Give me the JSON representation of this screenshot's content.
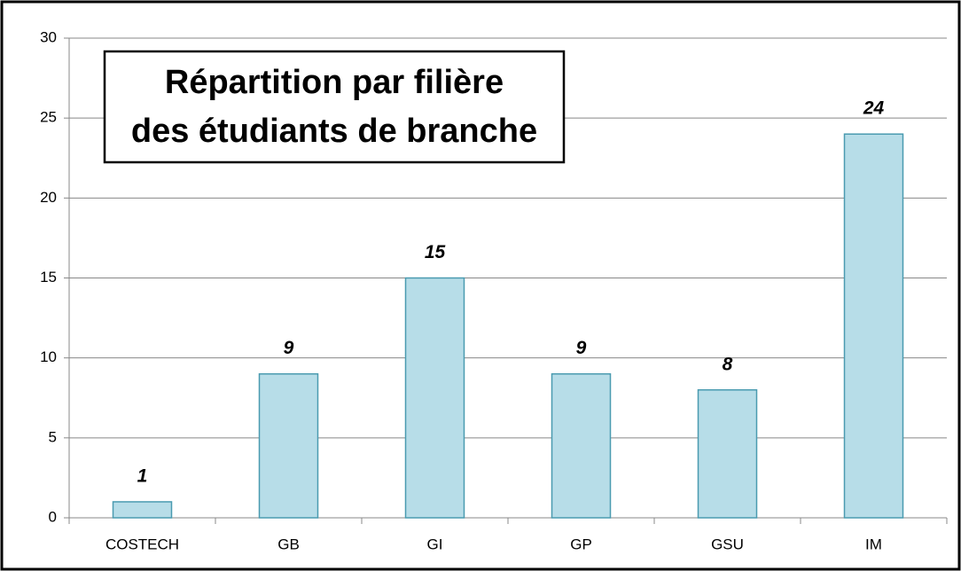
{
  "chart_data": {
    "type": "bar",
    "title": [
      "Répartition par filière",
      "des étudiants de branche"
    ],
    "categories": [
      "COSTECH",
      "GB",
      "GI",
      "GP",
      "GSU",
      "IM"
    ],
    "values": [
      1,
      9,
      15,
      9,
      8,
      24
    ],
    "color": "#b7dde8",
    "ylim": [
      0,
      30
    ],
    "yticks": [
      0,
      5,
      10,
      15,
      20,
      25,
      30
    ],
    "grid": true
  }
}
